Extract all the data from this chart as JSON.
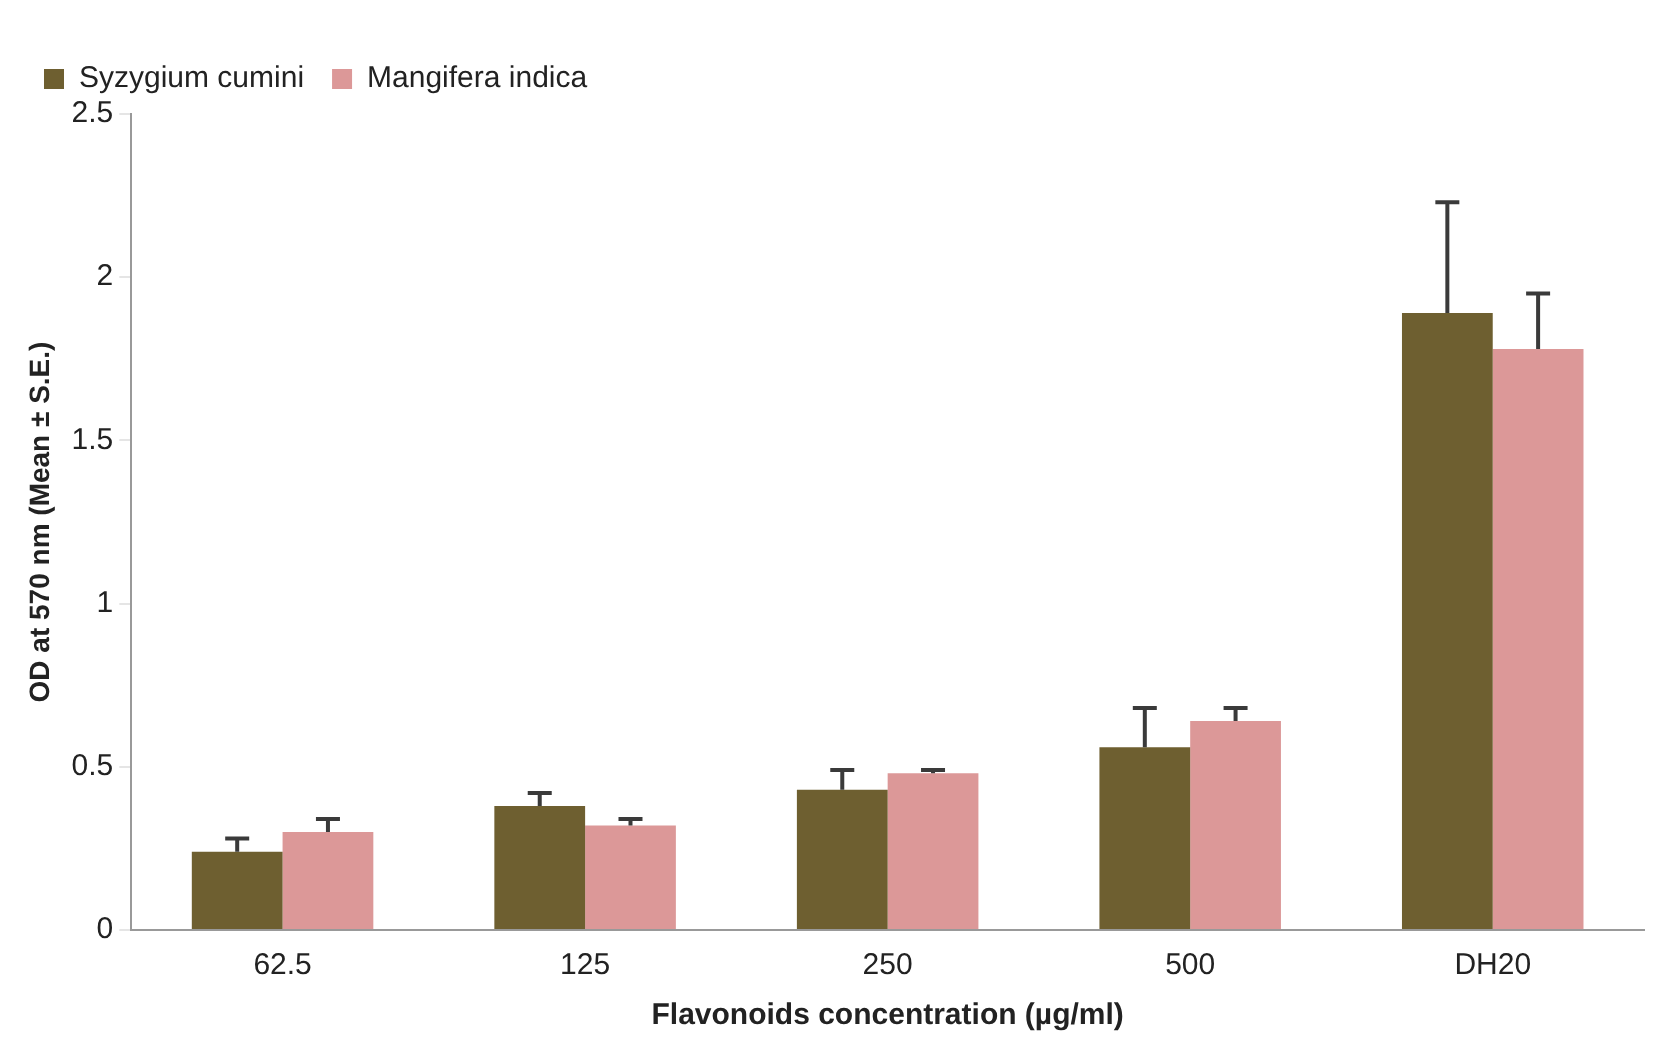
{
  "chart_data": {
    "type": "bar",
    "xlabel": "Flavonoids concentration (µg/ml)",
    "ylabel": "OD at 570 nm (Mean ± S.E.)",
    "categories": [
      "62.5",
      "125",
      "250",
      "500",
      "DH20"
    ],
    "series": [
      {
        "name": "Syzygium cumini",
        "color": "#6e5f30",
        "values": [
          0.24,
          0.38,
          0.43,
          0.56,
          1.89
        ],
        "errors": [
          [
            0.24,
            0.28
          ],
          [
            0.38,
            0.42
          ],
          [
            0.43,
            0.49
          ],
          [
            0.56,
            0.68
          ],
          [
            1.89,
            2.23
          ]
        ]
      },
      {
        "name": "Mangifera indica",
        "color": "#dc9898",
        "values": [
          0.3,
          0.32,
          0.48,
          0.64,
          1.78
        ],
        "errors": [
          [
            0.3,
            0.34
          ],
          [
            0.32,
            0.34
          ],
          [
            0.48,
            0.49
          ],
          [
            0.64,
            0.68
          ],
          [
            1.78,
            1.95
          ]
        ]
      }
    ],
    "ylim": [
      0,
      2.5
    ],
    "yticks": [
      0,
      0.5,
      1,
      1.5,
      2,
      2.5
    ],
    "grid": false,
    "legend": "top left"
  }
}
